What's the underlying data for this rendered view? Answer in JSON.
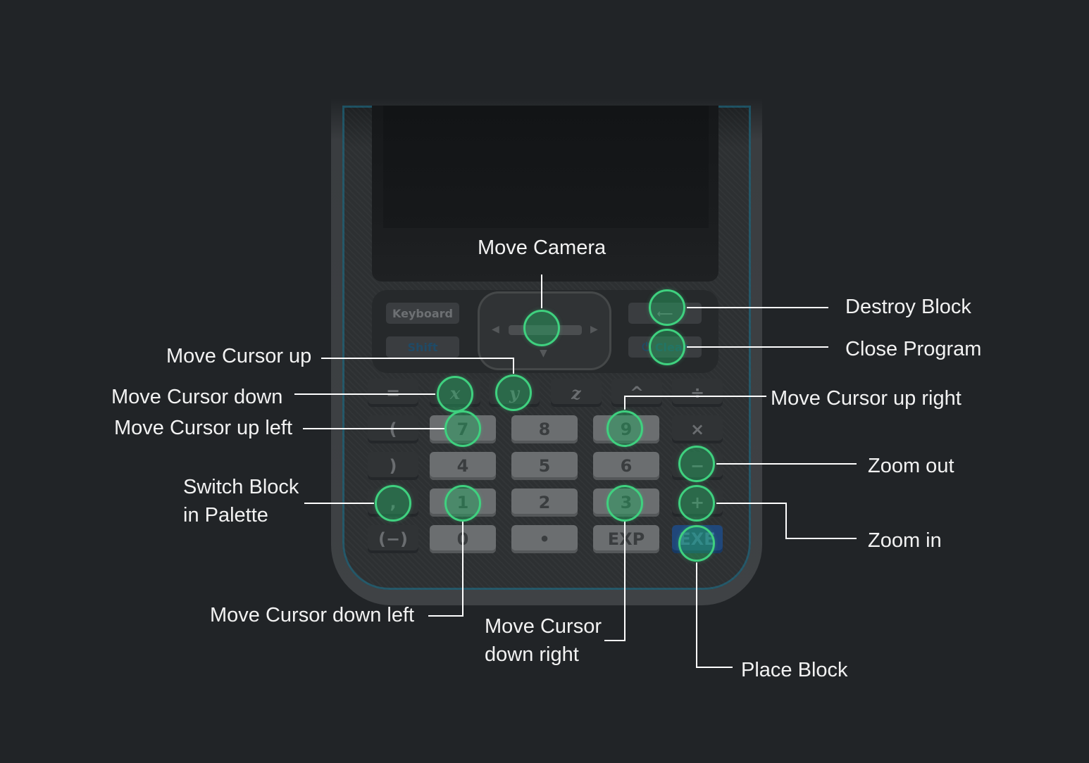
{
  "calculator": {
    "softkeys": {
      "keyboard": "Keyboard",
      "shift": "Shift",
      "clear": "Clear"
    },
    "keys": {
      "row1": [
        "=",
        "x",
        "y",
        "z",
        "^",
        "÷"
      ],
      "row2": [
        "(",
        "7",
        "8",
        "9",
        "×"
      ],
      "row3": [
        ")",
        "4",
        "5",
        "6",
        "−"
      ],
      "row4": [
        ",",
        "1",
        "2",
        "3",
        "+"
      ],
      "row5": [
        "(−)",
        "0",
        "•",
        "EXP",
        "EXE"
      ]
    }
  },
  "labels": {
    "move_camera": "Move Camera",
    "destroy_block": "Destroy Block",
    "close_program": "Close Program",
    "move_cursor_up": "Move Cursor up",
    "move_cursor_down": "Move Cursor down",
    "move_cursor_up_right": "Move Cursor up right",
    "move_cursor_up_left": "Move Cursor up left",
    "zoom_out": "Zoom out",
    "switch_block_line1": "Switch Block",
    "switch_block_line2": "in Palette",
    "zoom_in": "Zoom in",
    "move_cursor_down_left": "Move Cursor down left",
    "move_cursor_down_right_line1": "Move Cursor",
    "move_cursor_down_right_line2": "down right",
    "place_block": "Place Block"
  },
  "colors": {
    "background": "#212427",
    "highlight": "#3fd17f",
    "leader": "#ffffff"
  }
}
